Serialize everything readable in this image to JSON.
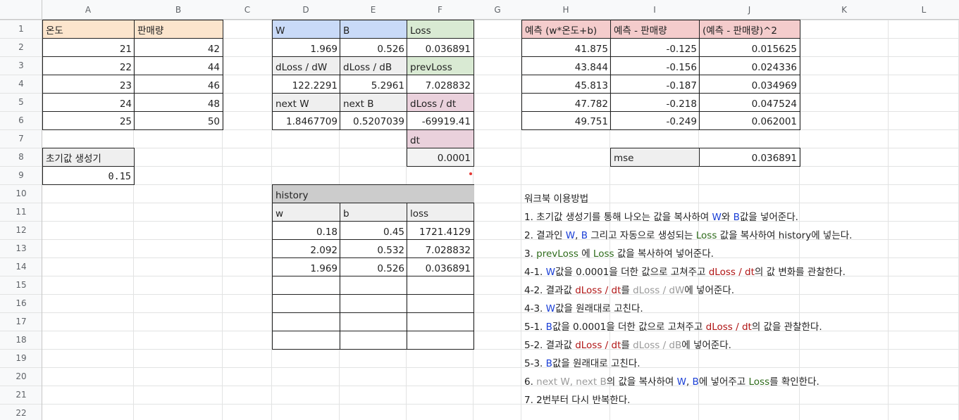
{
  "columns": [
    "A",
    "B",
    "C",
    "D",
    "E",
    "F",
    "G",
    "H",
    "I",
    "J",
    "K",
    "L"
  ],
  "rows": [
    "1",
    "2",
    "3",
    "4",
    "5",
    "6",
    "7",
    "8",
    "9",
    "10",
    "11",
    "12",
    "13",
    "14",
    "15",
    "16",
    "17",
    "18",
    "19",
    "20",
    "21",
    "22"
  ],
  "colors": {
    "orange_header": "#fce5cd",
    "blue_header": "#c9daf8",
    "green_header": "#d9ead3",
    "pink_header": "#ead1dc",
    "red_header": "#f4cccc",
    "gray_header": "#cccccc",
    "light_gray": "#efefef"
  },
  "cells": {
    "A1": "온도",
    "B1": "판매량",
    "A2": "21",
    "B2": "42",
    "A3": "22",
    "B3": "44",
    "A4": "23",
    "B4": "46",
    "A5": "24",
    "B5": "48",
    "A6": "25",
    "B6": "50",
    "A8": "초기값 생성기",
    "A9": "0.15",
    "D1": "W",
    "E1": "B",
    "F1": "Loss",
    "D2": "1.969",
    "E2": "0.526",
    "F2": "0.036891",
    "D3": "dLoss / dW",
    "E3": "dLoss / dB",
    "F3": "prevLoss",
    "D4": "122.2291",
    "E4": "5.2961",
    "F4": "7.028832",
    "D5": "next W",
    "E5": "next B",
    "F5": "dLoss / dt",
    "D6": "1.8467709",
    "E6": "0.5207039",
    "F6": "-69919.41",
    "F7": "dt",
    "F8": "0.0001",
    "H1": "예측 (w*온도+b)",
    "I1": "예측 - 판매량",
    "J1": "(예측 - 판매량)^2",
    "H2": "41.875",
    "I2": "-0.125",
    "J2": "0.015625",
    "H3": "43.844",
    "I3": "-0.156",
    "J3": "0.024336",
    "H4": "45.813",
    "I4": "-0.187",
    "J4": "0.034969",
    "H5": "47.782",
    "I5": "-0.218",
    "J5": "0.047524",
    "H6": "49.751",
    "I6": "-0.249",
    "J6": "0.062001",
    "I8": "mse",
    "J8": "0.036891",
    "D10": "history",
    "D11": "w",
    "E11": "b",
    "F11": "loss",
    "D12": "0.18",
    "E12": "0.45",
    "F12": "1721.4129",
    "D13": "2.092",
    "E13": "0.532",
    "F13": "7.028832",
    "D14": "1.969",
    "E14": "0.526",
    "F14": "0.036891"
  },
  "notes": {
    "title": "워크북 이용방법",
    "n1": {
      "a": "1. 초기값 생성기를 통해 나오는 값을 복사하여 ",
      "b": "W",
      "c": "와 ",
      "d": "B",
      "e": "값을 넣어준다."
    },
    "n2": {
      "a": "2. 결과인 ",
      "b": "W",
      "c": ", ",
      "d": "B",
      "e": " 그리고 자동으로 생성되는 ",
      "f": "Loss",
      "g": " 값을 복사하여 history에 넣는다."
    },
    "n3": {
      "a": "3. ",
      "b": "prevLoss",
      "c": " 에 ",
      "d": "Loss",
      "e": " 값을 복사하여 넣어준다."
    },
    "n41": {
      "a": "4-1. ",
      "b": "W",
      "c": "값을 0.0001을 더한 값으로 고쳐주고 ",
      "d": "dLoss / dt",
      "e": "의 값 변화를 관찰한다."
    },
    "n42": {
      "a": "4-2. 결과값 ",
      "b": "dLoss / dt",
      "c": "를 ",
      "d": "dLoss / dW",
      "e": "에 넣어준다."
    },
    "n43": {
      "a": "4-3. ",
      "b": "W",
      "c": "값을 원래대로 고친다."
    },
    "n51": {
      "a": "5-1. ",
      "b": "B",
      "c": "값을 0.0001을 더한 값으로 고쳐주고 ",
      "d": "dLoss / dt",
      "e": "의 값을 관찰한다."
    },
    "n52": {
      "a": "5-2. 결과값 ",
      "b": "dLoss / dt",
      "c": "를 ",
      "d": "dLoss / dB",
      "e": "에 넣어준다."
    },
    "n53": {
      "a": "5-3. ",
      "b": "B",
      "c": "값을 원래대로 고친다."
    },
    "n6": {
      "a": "6. ",
      "b": "next W, next B",
      "c": "의 값을 복사하여 ",
      "d": "W",
      "e": ", ",
      "f": "B",
      "g": "에 넣어주고 ",
      "h": "Loss",
      "i": "를 확인한다."
    },
    "n7": {
      "a": "7. 2번부터 다시 반복한다."
    }
  }
}
